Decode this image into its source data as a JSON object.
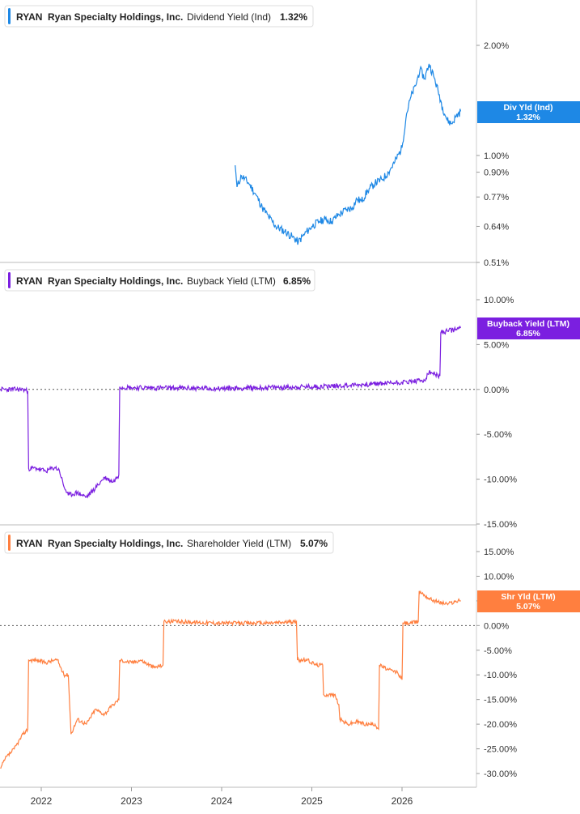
{
  "x_axis": {
    "ticks": [
      "2022",
      "2023",
      "2024",
      "2025",
      "2026"
    ]
  },
  "chart_data": [
    {
      "type": "line",
      "ticker": "RYAN",
      "company": "Ryan Specialty Holdings, Inc.",
      "metric": "Dividend Yield (Ind)",
      "current_value": "1.32%",
      "tag_label": "Div Yld (Ind)",
      "color": "#1e88e5",
      "scale": "log",
      "ylim": [
        0.48,
        2.4
      ],
      "yticks": [
        0.51,
        0.64,
        0.77,
        0.9,
        1.0,
        2.0
      ],
      "ytick_labels": [
        "0.51%",
        "0.64%",
        "0.77%",
        "0.90%",
        "1.00%",
        "2.00%"
      ],
      "zero_line": false,
      "series": [
        {
          "x": [
            2024.15,
            2024.17,
            2024.22,
            2024.3,
            2024.38,
            2024.45,
            2024.52,
            2024.6,
            2024.7,
            2024.78,
            2024.85,
            2024.92,
            2025.0,
            2025.08,
            2025.15,
            2025.22,
            2025.3,
            2025.38,
            2025.45,
            2025.5,
            2025.55,
            2025.62,
            2025.7,
            2025.78,
            2025.85,
            2025.92,
            2026.0,
            2026.05,
            2026.1,
            2026.15,
            2026.2,
            2026.25,
            2026.3,
            2026.35,
            2026.4,
            2026.45,
            2026.5,
            2026.55,
            2026.6,
            2026.65
          ],
          "values": [
            0.94,
            0.82,
            0.88,
            0.84,
            0.78,
            0.72,
            0.68,
            0.64,
            0.62,
            0.6,
            0.58,
            0.61,
            0.64,
            0.66,
            0.67,
            0.66,
            0.69,
            0.71,
            0.72,
            0.76,
            0.75,
            0.8,
            0.84,
            0.86,
            0.9,
            0.96,
            1.05,
            1.3,
            1.45,
            1.55,
            1.72,
            1.62,
            1.78,
            1.65,
            1.5,
            1.35,
            1.25,
            1.22,
            1.28,
            1.32
          ]
        }
      ]
    },
    {
      "type": "line",
      "ticker": "RYAN",
      "company": "Ryan Specialty Holdings, Inc.",
      "metric": "Buyback Yield (LTM)",
      "current_value": "6.85%",
      "tag_label": "Buyback Yield (LTM)",
      "color": "#7b1fe0",
      "scale": "linear",
      "ylim": [
        -15,
        10
      ],
      "yticks": [
        10,
        5,
        0,
        -5,
        -10,
        -15
      ],
      "ytick_labels": [
        "10.00%",
        "5.00%",
        "0.00%",
        "-5.00%",
        "-10.00%",
        "-15.00%"
      ],
      "zero_line": true,
      "series": [
        {
          "x": [
            2021.55,
            2021.8,
            2021.85,
            2021.86,
            2021.95,
            2022.05,
            2022.15,
            2022.2,
            2022.25,
            2022.3,
            2022.4,
            2022.5,
            2022.6,
            2022.7,
            2022.8,
            2022.86,
            2022.87,
            2023.0,
            2023.5,
            2024.0,
            2024.5,
            2025.0,
            2025.5,
            2026.0,
            2026.25,
            2026.3,
            2026.42,
            2026.43,
            2026.5,
            2026.6,
            2026.65
          ],
          "values": [
            0,
            0,
            -0.2,
            -8.8,
            -8.8,
            -9.1,
            -8.7,
            -9.0,
            -10.8,
            -11.8,
            -11.5,
            -12.0,
            -11.0,
            -9.8,
            -10.3,
            -9.5,
            0.3,
            0.2,
            0.15,
            0.1,
            0.2,
            0.3,
            0.5,
            0.8,
            1.0,
            1.9,
            1.5,
            6.3,
            6.5,
            6.7,
            6.85
          ]
        }
      ]
    },
    {
      "type": "line",
      "ticker": "RYAN",
      "company": "Ryan Specialty Holdings, Inc.",
      "metric": "Shareholder Yield (LTM)",
      "current_value": "5.07%",
      "tag_label": "Shr Yld (LTM)",
      "color": "#ff7f3f",
      "scale": "linear",
      "ylim": [
        -33,
        18
      ],
      "yticks": [
        15,
        10,
        5,
        0,
        -5,
        -10,
        -15,
        -20,
        -25,
        -30
      ],
      "ytick_labels": [
        "15.00%",
        "10.00%",
        "5.00%",
        "0.00%",
        "-5.00%",
        "-10.00%",
        "-15.00%",
        "-20.00%",
        "-25.00%",
        "-30.00%"
      ],
      "zero_line": true,
      "series": [
        {
          "x": [
            2021.55,
            2021.6,
            2021.7,
            2021.8,
            2021.85,
            2021.86,
            2021.95,
            2022.05,
            2022.15,
            2022.18,
            2022.25,
            2022.3,
            2022.33,
            2022.4,
            2022.5,
            2022.6,
            2022.7,
            2022.8,
            2022.86,
            2022.87,
            2023.0,
            2023.1,
            2023.25,
            2023.35,
            2023.36,
            2023.5,
            2024.0,
            2024.5,
            2024.83,
            2024.84,
            2024.95,
            2025.05,
            2025.12,
            2025.13,
            2025.25,
            2025.3,
            2025.31,
            2025.4,
            2025.5,
            2025.6,
            2025.7,
            2025.74,
            2025.75,
            2025.85,
            2025.95,
            2026.0,
            2026.01,
            2026.1,
            2026.18,
            2026.19,
            2026.3,
            2026.4,
            2026.5,
            2026.6,
            2026.65
          ],
          "values": [
            -29,
            -27,
            -25,
            -22,
            -21,
            -7,
            -7,
            -7.5,
            -7,
            -7,
            -10,
            -10,
            -22,
            -19,
            -20,
            -17,
            -18,
            -16,
            -15,
            -7,
            -7.5,
            -7,
            -8.5,
            -8,
            0.8,
            0.8,
            0.5,
            0.5,
            0.8,
            -7,
            -7,
            -8,
            -8,
            -14,
            -14,
            -16,
            -19,
            -20,
            -19.5,
            -20,
            -20,
            -21,
            -8,
            -9,
            -9.5,
            -11,
            0.5,
            0.5,
            0.8,
            7,
            5.5,
            4.8,
            4.4,
            4.9,
            5.07
          ]
        }
      ]
    }
  ]
}
